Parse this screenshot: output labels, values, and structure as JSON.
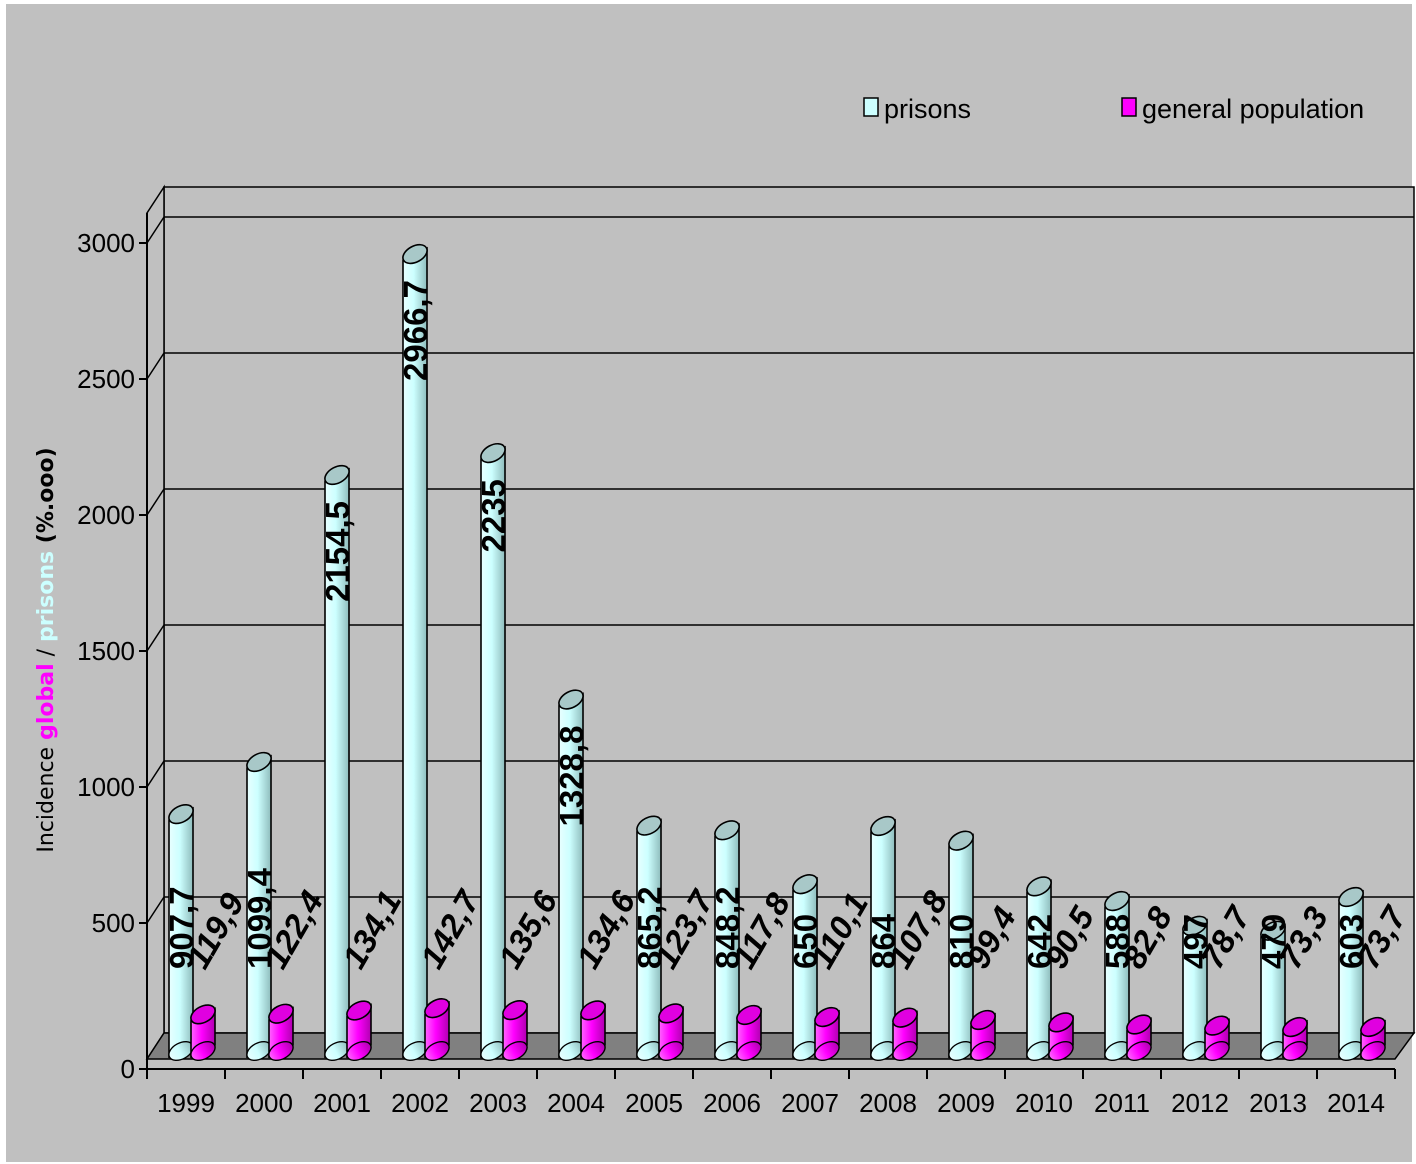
{
  "chart_data": {
    "type": "bar",
    "title": "",
    "ylabel_parts": [
      {
        "text": "Incidence ",
        "color": "#000000",
        "bold": false
      },
      {
        "text": "global",
        "color": "#ff00ff",
        "bold": true
      },
      {
        "text": " / ",
        "color": "#000000",
        "bold": false
      },
      {
        "text": "prisons",
        "color": "#ccffff",
        "bold": true
      },
      {
        "text": " (%.ooo)",
        "color": "#000000",
        "bold": true
      }
    ],
    "categories": [
      "1999",
      "2000",
      "2001",
      "2002",
      "2003",
      "2004",
      "2005",
      "2006",
      "2007",
      "2008",
      "2009",
      "2010",
      "2011",
      "2012",
      "2013",
      "2014"
    ],
    "series": [
      {
        "name": "prisons",
        "color": "#ccffff",
        "values": [
          907.7,
          1099.4,
          2154.5,
          2966.7,
          2235,
          1328.8,
          865.2,
          848.2,
          650,
          864,
          810,
          642,
          588,
          497,
          479,
          603
        ],
        "labels": [
          "907,7",
          "1099,4",
          "2154,5",
          "2966,7",
          "2235",
          "1328,8",
          "865,2",
          "848,2",
          "650",
          "864",
          "810",
          "642",
          "588",
          "497",
          "479",
          "603"
        ]
      },
      {
        "name": "general population",
        "color": "#ff00ff",
        "values": [
          119.9,
          122.4,
          134.1,
          142.7,
          135.6,
          134.6,
          123.7,
          117.8,
          110.1,
          107.8,
          99.4,
          90.5,
          82.8,
          78.7,
          73.3,
          73.7
        ],
        "labels": [
          "119,9",
          "122,4",
          "134,1",
          "142,7",
          "135,6",
          "134,6",
          "123,7",
          "117,8",
          "110,1",
          "107,8",
          "99,4",
          "90,5",
          "82,8",
          "78,7",
          "73,3",
          "73,7"
        ]
      }
    ],
    "y_ticks": [
      "0",
      "500",
      "1000",
      "1500",
      "2000",
      "2500",
      "3000"
    ],
    "ylim": [
      0,
      3000
    ],
    "grid": true,
    "legend_position": "top-right",
    "background_color": "#c0c0c0",
    "floor_color": "#808080"
  }
}
